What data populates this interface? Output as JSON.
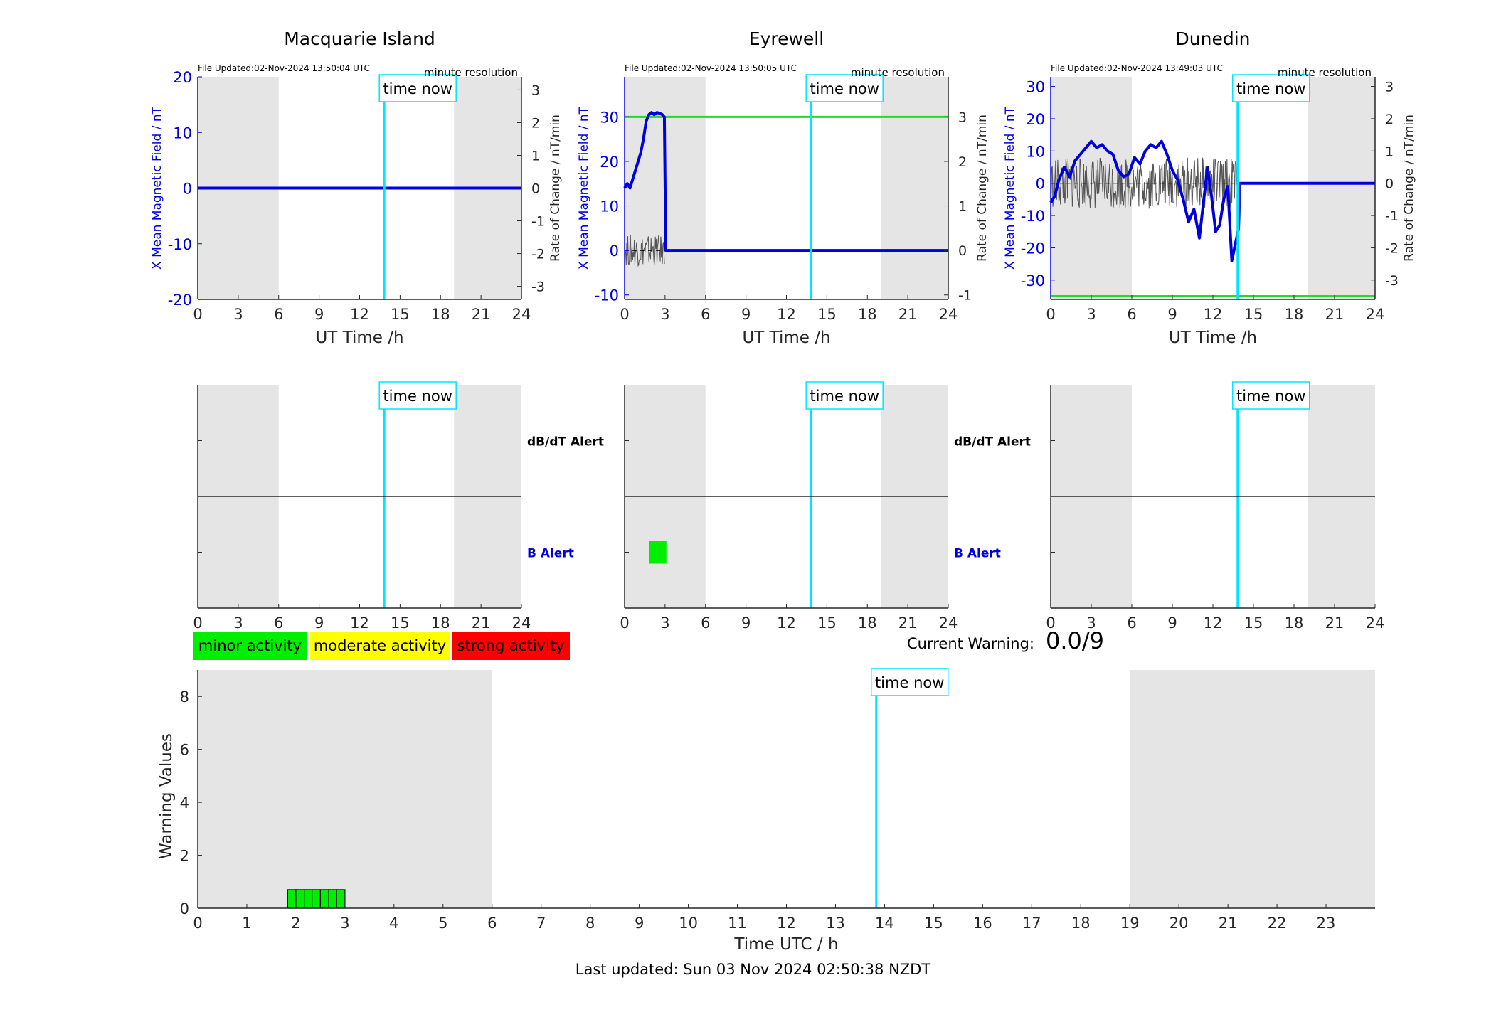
{
  "chart_data": [
    {
      "type": "line",
      "title": "Macquarie Island",
      "file_updated": "File Updated:02-Nov-2024 13:50:04 UTC",
      "resolution": "minute resolution",
      "xlabel": "UT Time /h",
      "ylabel": "X Mean Magnetic Field / nT",
      "ylabel_right": "Rate of Change / nT/min",
      "xlim": [
        0,
        24
      ],
      "ylim": [
        -20,
        20
      ],
      "ylim_right": [
        -3.4,
        3.4
      ],
      "xticks": [
        0,
        3,
        6,
        9,
        12,
        15,
        18,
        21,
        24
      ],
      "yticks": [
        -20,
        -10,
        0,
        10,
        20
      ],
      "yticks_right": [
        -3,
        -2,
        -1,
        0,
        1,
        2,
        3
      ],
      "night_shading": [
        [
          0,
          6
        ],
        [
          19,
          24
        ]
      ],
      "time_now": 13.83,
      "time_now_label": "time now",
      "series": [
        {
          "x": [
            0,
            24
          ],
          "y": [
            0,
            0
          ],
          "color": "#0000dd"
        }
      ]
    },
    {
      "type": "line",
      "title": "Eyrewell",
      "file_updated": "File Updated:02-Nov-2024 13:50:05 UTC",
      "resolution": "minute resolution",
      "xlabel": "UT Time /h",
      "ylabel": "X Mean Magnetic Field / nT",
      "ylabel_right": "Rate of Change / nT/min",
      "xlim": [
        0,
        24
      ],
      "ylim": [
        -11,
        39
      ],
      "ylim_right": [
        -1.1,
        3.9
      ],
      "xticks": [
        0,
        3,
        6,
        9,
        12,
        15,
        18,
        21,
        24
      ],
      "yticks": [
        -10,
        0,
        10,
        20,
        30
      ],
      "yticks_right": [
        -1,
        0,
        1,
        2,
        3
      ],
      "night_shading": [
        [
          0,
          6
        ],
        [
          19,
          24
        ]
      ],
      "time_now": 13.83,
      "time_now_label": "time now",
      "threshold": {
        "y": 30,
        "color": "#22dd22"
      },
      "series": [
        {
          "x": [
            0,
            0.2,
            0.4,
            0.6,
            0.8,
            1.0,
            1.2,
            1.4,
            1.6,
            1.8,
            2.0,
            2.2,
            2.4,
            2.6,
            2.8,
            2.95,
            3.0,
            3.05,
            24
          ],
          "y": [
            14,
            15,
            14,
            16,
            18,
            20,
            22,
            25,
            29,
            30.5,
            31,
            30.5,
            31,
            30.8,
            30.5,
            30,
            15,
            0,
            0
          ],
          "color": "#0000dd"
        }
      ]
    },
    {
      "type": "line",
      "title": "Dunedin",
      "file_updated": "File Updated:02-Nov-2024 13:49:03 UTC",
      "resolution": "minute resolution",
      "xlabel": "UT Time /h",
      "ylabel": "X Mean Magnetic Field / nT",
      "ylabel_right": "Rate of Change / nT/min",
      "xlim": [
        0,
        24
      ],
      "ylim": [
        -36,
        33
      ],
      "ylim_right": [
        -3.6,
        3.3
      ],
      "xticks": [
        0,
        3,
        6,
        9,
        12,
        15,
        18,
        21,
        24
      ],
      "yticks": [
        -30,
        -20,
        -10,
        0,
        10,
        20,
        30
      ],
      "yticks_right": [
        -3,
        -2,
        -1,
        0,
        1,
        2,
        3
      ],
      "night_shading": [
        [
          0,
          6
        ],
        [
          19,
          24
        ]
      ],
      "time_now": 13.83,
      "time_now_label": "time now",
      "threshold": {
        "y": -35,
        "color": "#22dd22"
      },
      "series": [
        {
          "x": [
            0,
            0.3,
            0.6,
            1.0,
            1.4,
            1.8,
            2.2,
            2.6,
            3.0,
            3.4,
            3.8,
            4.2,
            4.6,
            5.0,
            5.4,
            5.8,
            6.2,
            6.6,
            7.0,
            7.4,
            7.8,
            8.2,
            8.6,
            9.0,
            9.4,
            9.8,
            10.2,
            10.6,
            11.0,
            11.3,
            11.6,
            11.9,
            12.2,
            12.5,
            12.8,
            13.1,
            13.4,
            13.7,
            13.9,
            14.0,
            24
          ],
          "y": [
            -6,
            -4,
            1,
            5,
            2,
            7,
            9,
            11,
            13,
            11,
            12,
            10,
            9,
            4,
            2,
            3,
            8,
            6,
            10,
            12,
            11,
            13,
            9,
            4,
            1,
            -5,
            -12,
            -8,
            -17,
            -6,
            5,
            -4,
            -15,
            -13,
            -5,
            -1,
            -24,
            -18,
            -14,
            0,
            0
          ],
          "color": "#0000dd"
        }
      ]
    },
    {
      "type": "bar",
      "title": "",
      "xlim": [
        0,
        24
      ],
      "xticks": [
        0,
        3,
        6,
        9,
        12,
        15,
        18,
        21,
        24
      ],
      "night_shading": [
        [
          0,
          6
        ],
        [
          19,
          24
        ]
      ],
      "time_now": 13.83,
      "time_now_label": "time now",
      "row_labels": [
        "dB/dT Alert",
        "B Alert"
      ],
      "alerts": []
    },
    {
      "type": "bar",
      "title": "",
      "xlim": [
        0,
        24
      ],
      "xticks": [
        0,
        3,
        6,
        9,
        12,
        15,
        18,
        21,
        24
      ],
      "night_shading": [
        [
          0,
          6
        ],
        [
          19,
          24
        ]
      ],
      "time_now": 13.83,
      "time_now_label": "time now",
      "row_labels": [
        "dB/dT Alert",
        "B Alert"
      ],
      "alerts": [
        {
          "row": "B Alert",
          "start": 1.8,
          "end": 3.1,
          "level": "minor activity",
          "color": "#00ee00"
        }
      ]
    },
    {
      "type": "bar",
      "title": "",
      "xlim": [
        0,
        24
      ],
      "xticks": [
        0,
        3,
        6,
        9,
        12,
        15,
        18,
        21,
        24
      ],
      "night_shading": [
        [
          0,
          6
        ],
        [
          19,
          24
        ]
      ],
      "time_now": 13.83,
      "time_now_label": "time now",
      "row_labels": [],
      "alerts": []
    },
    {
      "type": "bar",
      "title": "",
      "xlabel": "Time UTC / h",
      "ylabel": "Warning Values",
      "xlim": [
        0,
        24
      ],
      "ylim": [
        0,
        9
      ],
      "xticks": [
        0,
        1,
        2,
        3,
        4,
        5,
        6,
        7,
        8,
        9,
        10,
        11,
        12,
        13,
        14,
        15,
        16,
        17,
        18,
        19,
        20,
        21,
        22,
        23
      ],
      "yticks": [
        0,
        2,
        4,
        6,
        8
      ],
      "night_shading": [
        [
          0,
          6
        ],
        [
          19,
          24
        ]
      ],
      "time_now": 13.83,
      "time_now_label": "time now",
      "bar_color": "#00ee00",
      "bars": [
        {
          "x0": 1.83,
          "x1": 2.0,
          "value": 0.7
        },
        {
          "x0": 2.0,
          "x1": 2.17,
          "value": 0.7
        },
        {
          "x0": 2.17,
          "x1": 2.33,
          "value": 0.7
        },
        {
          "x0": 2.33,
          "x1": 2.5,
          "value": 0.7
        },
        {
          "x0": 2.5,
          "x1": 2.67,
          "value": 0.7
        },
        {
          "x0": 2.67,
          "x1": 2.83,
          "value": 0.7
        },
        {
          "x0": 2.83,
          "x1": 3.0,
          "value": 0.7
        }
      ]
    }
  ],
  "legend": [
    {
      "label": "minor activity",
      "color": "#00ee00"
    },
    {
      "label": "moderate activity",
      "color": "#ffff00"
    },
    {
      "label": "strong activity",
      "color": "#ff0000"
    }
  ],
  "current_warning": {
    "label": "Current Warning:",
    "value": "0.0/9"
  },
  "footer": "Last updated: Sun 03 Nov 2024 02:50:38 NZDT"
}
